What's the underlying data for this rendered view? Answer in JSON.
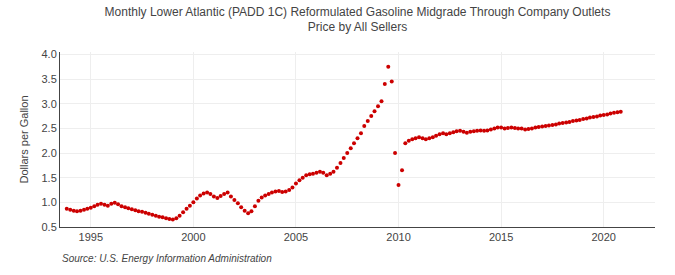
{
  "chart_data": {
    "type": "scatter",
    "title": "Monthly Lower Atlantic (PADD 1C) Reformulated Gasoline Midgrade Through Company Outlets\nPrice by All Sellers",
    "ylabel": "Dollars per Gallon",
    "source": "Source: U.S. Energy Information Administration",
    "color": "#cc0000",
    "grid": true,
    "xlim": [
      1993.5,
      2022.5
    ],
    "ylim": [
      0.5,
      4.05
    ],
    "xticks": [
      1995,
      2000,
      2005,
      2010,
      2015,
      2020
    ],
    "yticks": [
      0.5,
      {
        "value": 1,
        "label": "1.0"
      },
      1.5,
      {
        "value": 2,
        "label": "2.0"
      },
      2.5,
      {
        "value": 3,
        "label": "3.0"
      },
      3.5,
      {
        "value": 4,
        "label": "4.0"
      }
    ],
    "x": [
      1993.83,
      1994.0,
      1994.17,
      1994.33,
      1994.5,
      1994.67,
      1994.83,
      1995.0,
      1995.17,
      1995.33,
      1995.5,
      1995.67,
      1995.83,
      1996.0,
      1996.17,
      1996.33,
      1996.5,
      1996.67,
      1996.83,
      1997.0,
      1997.17,
      1997.33,
      1997.5,
      1997.67,
      1997.83,
      1998.0,
      1998.17,
      1998.33,
      1998.5,
      1998.67,
      1998.83,
      1999.0,
      1999.17,
      1999.33,
      1999.5,
      1999.67,
      1999.83,
      2000.0,
      2000.17,
      2000.33,
      2000.5,
      2000.67,
      2000.83,
      2001.0,
      2001.17,
      2001.33,
      2001.5,
      2001.67,
      2001.83,
      2002.0,
      2002.17,
      2002.33,
      2002.5,
      2002.67,
      2002.83,
      2003.0,
      2003.17,
      2003.33,
      2003.5,
      2003.67,
      2003.83,
      2004.0,
      2004.17,
      2004.33,
      2004.5,
      2004.67,
      2004.83,
      2005.0,
      2005.17,
      2005.33,
      2005.5,
      2005.67,
      2005.83,
      2006.0,
      2006.17,
      2006.33,
      2006.5,
      2006.67,
      2006.83,
      2007.0,
      2007.17,
      2007.33,
      2007.5,
      2007.67,
      2007.83,
      2008.0,
      2008.17,
      2008.33,
      2008.5,
      2008.67,
      2008.83,
      2009.0,
      2009.17,
      2009.33,
      2009.5,
      2009.67,
      2009.83,
      2010.0,
      2010.17,
      2010.33,
      2010.5,
      2010.67,
      2010.83,
      2011.0,
      2011.17,
      2011.33,
      2011.5,
      2011.67,
      2011.83,
      2012.0,
      2012.17,
      2012.33,
      2012.5,
      2012.67,
      2012.83,
      2013.0,
      2013.17,
      2013.33,
      2013.5,
      2013.67,
      2013.83,
      2014.0,
      2014.17,
      2014.33,
      2014.5,
      2014.67,
      2014.83,
      2015.0,
      2015.17,
      2015.33,
      2015.5,
      2015.67,
      2015.83,
      2016.0,
      2016.17,
      2016.33,
      2016.5,
      2016.67,
      2016.83,
      2017.0,
      2017.17,
      2017.33,
      2017.5,
      2017.67,
      2017.83,
      2018.0,
      2018.17,
      2018.33,
      2018.5,
      2018.67,
      2018.83,
      2019.0,
      2019.17,
      2019.33,
      2019.5,
      2019.67,
      2019.83,
      2020.0,
      2020.17,
      2020.33,
      2020.5,
      2020.67,
      2020.83
    ],
    "values": [
      0.87,
      0.85,
      0.83,
      0.82,
      0.83,
      0.85,
      0.87,
      0.89,
      0.92,
      0.95,
      0.97,
      0.95,
      0.93,
      0.97,
      0.99,
      0.96,
      0.92,
      0.9,
      0.88,
      0.86,
      0.84,
      0.82,
      0.81,
      0.79,
      0.77,
      0.75,
      0.73,
      0.71,
      0.7,
      0.68,
      0.66,
      0.65,
      0.68,
      0.73,
      0.8,
      0.87,
      0.93,
      1.0,
      1.08,
      1.14,
      1.18,
      1.2,
      1.17,
      1.12,
      1.09,
      1.13,
      1.17,
      1.2,
      1.12,
      1.05,
      0.98,
      0.9,
      0.83,
      0.78,
      0.82,
      0.92,
      1.03,
      1.1,
      1.14,
      1.17,
      1.2,
      1.22,
      1.23,
      1.21,
      1.22,
      1.25,
      1.3,
      1.38,
      1.45,
      1.5,
      1.55,
      1.57,
      1.58,
      1.6,
      1.62,
      1.6,
      1.55,
      1.58,
      1.62,
      1.7,
      1.8,
      1.9,
      2.0,
      2.1,
      2.2,
      2.3,
      2.4,
      2.55,
      2.65,
      2.75,
      2.85,
      2.95,
      3.05,
      3.4,
      3.75,
      3.45,
      2.0,
      1.35,
      1.65,
      2.2,
      2.25,
      2.28,
      2.3,
      2.32,
      2.3,
      2.28,
      2.3,
      2.32,
      2.35,
      2.38,
      2.4,
      2.38,
      2.4,
      2.42,
      2.44,
      2.45,
      2.43,
      2.41,
      2.43,
      2.44,
      2.45,
      2.46,
      2.45,
      2.46,
      2.48,
      2.5,
      2.52,
      2.52,
      2.5,
      2.51,
      2.52,
      2.51,
      2.5,
      2.5,
      2.48,
      2.49,
      2.5,
      2.52,
      2.53,
      2.54,
      2.55,
      2.56,
      2.57,
      2.58,
      2.6,
      2.61,
      2.62,
      2.63,
      2.65,
      2.66,
      2.67,
      2.69,
      2.7,
      2.72,
      2.73,
      2.74,
      2.76,
      2.77,
      2.78,
      2.8,
      2.82,
      2.83,
      2.84
    ]
  }
}
